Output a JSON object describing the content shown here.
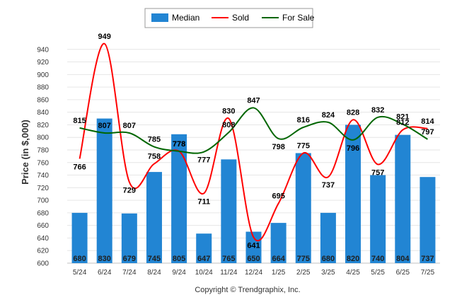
{
  "chart_data": {
    "type": "bar",
    "categories": [
      "5/24",
      "6/24",
      "7/24",
      "8/24",
      "9/24",
      "10/24",
      "11/24",
      "12/24",
      "1/25",
      "2/25",
      "3/25",
      "4/25",
      "5/25",
      "6/25",
      "7/25"
    ],
    "series": [
      {
        "name": "Median",
        "type": "bar",
        "color": "#2285d3",
        "values": [
          680,
          830,
          679,
          745,
          805,
          647,
          765,
          650,
          664,
          775,
          680,
          820,
          740,
          804,
          737
        ]
      },
      {
        "name": "Sold",
        "type": "line",
        "color": "#ff0000",
        "values": [
          766,
          949,
          729,
          758,
          778,
          711,
          830,
          641,
          695,
          775,
          737,
          828,
          757,
          812,
          814
        ]
      },
      {
        "name": "For Sale",
        "type": "line",
        "color": "#006600",
        "values": [
          815,
          807,
          807,
          785,
          778,
          777,
          808,
          847,
          798,
          816,
          824,
          796,
          832,
          821,
          797
        ]
      }
    ],
    "ylabel": "Price (in $,000)",
    "xlabel": "",
    "ylim": [
      600,
      960
    ],
    "yticks": [
      600,
      620,
      640,
      660,
      680,
      700,
      720,
      740,
      760,
      780,
      800,
      820,
      840,
      860,
      880,
      900,
      920,
      940
    ],
    "grid": true,
    "legend": "top-center",
    "footer": "Copyright © Trendgraphix, Inc."
  }
}
